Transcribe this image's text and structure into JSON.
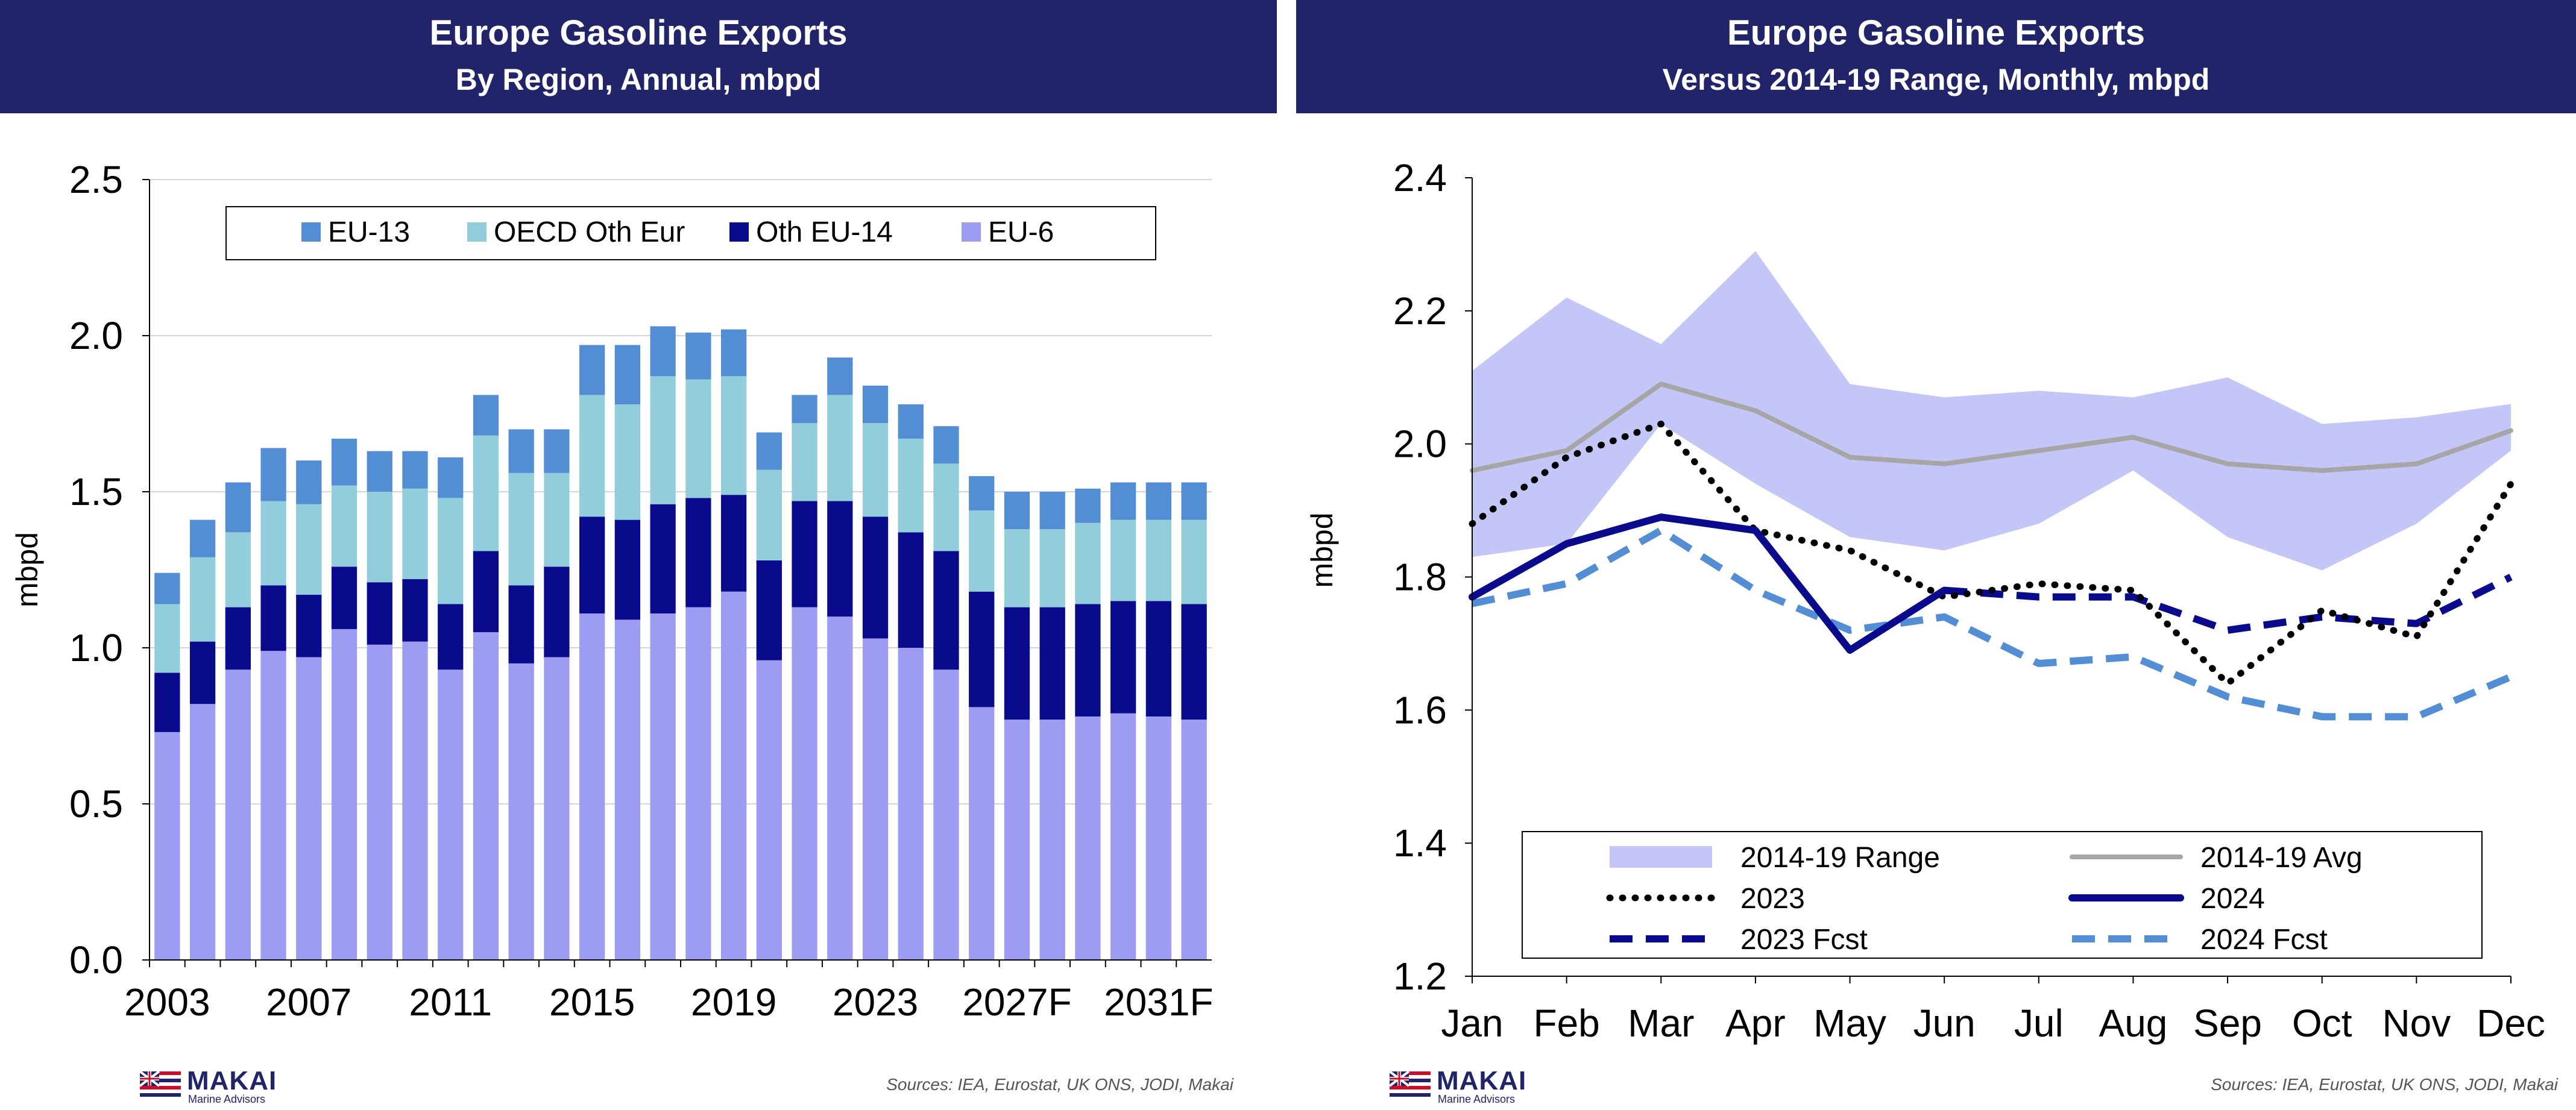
{
  "left_panel": {
    "title": "Europe Gasoline Exports",
    "subtitle": "By Region, Annual, mbpd",
    "source": "Sources: IEA, Eurostat, UK ONS, JODI, Makai",
    "logo_name": "MAKAI",
    "logo_sub": "Marine Advisors"
  },
  "right_panel": {
    "title": "Europe Gasoline Exports",
    "subtitle": "Versus 2014-19 Range, Monthly, mbpd",
    "source": "Sources: IEA, Eurostat, UK ONS, JODI, Makai",
    "logo_name": "MAKAI",
    "logo_sub": "Marine Advisors"
  },
  "chart_data": [
    {
      "type": "bar",
      "stacked": true,
      "title": "Europe Gasoline Exports",
      "subtitle": "By Region, Annual, mbpd",
      "ylabel": "mbpd",
      "ylim": [
        0,
        2.5
      ],
      "yticks": [
        "0.0",
        "0.5",
        "1.0",
        "1.5",
        "2.0",
        "2.5"
      ],
      "grid": "horizontal",
      "legend": "top",
      "forecast_shading_from": "2024",
      "categories": [
        "2003",
        "2004",
        "2005",
        "2006",
        "2007",
        "2008",
        "2009",
        "2010",
        "2011",
        "2012",
        "2013",
        "2014",
        "2015",
        "2016",
        "2017",
        "2018",
        "2019",
        "2020",
        "2021",
        "2022",
        "2023",
        "2024F",
        "2025F",
        "2026F",
        "2027F",
        "2028F",
        "2029F",
        "2030F",
        "2031F",
        "2032F"
      ],
      "xtick_labels": [
        "2003",
        "2007",
        "2011",
        "2015",
        "2019",
        "2023",
        "2027F",
        "2031F"
      ],
      "series": [
        {
          "name": "EU-6",
          "color": "#9b9cf2",
          "values": [
            0.73,
            0.82,
            0.93,
            0.99,
            0.97,
            1.06,
            1.01,
            1.02,
            0.93,
            1.05,
            0.95,
            0.97,
            1.11,
            1.09,
            1.11,
            1.13,
            1.18,
            0.96,
            1.13,
            1.1,
            1.03,
            1.0,
            0.93,
            0.81,
            0.77,
            0.77,
            0.78,
            0.79,
            0.78,
            0.77
          ]
        },
        {
          "name": "Oth EU-14",
          "color": "#0a0a8c",
          "values": [
            0.19,
            0.2,
            0.2,
            0.21,
            0.2,
            0.2,
            0.2,
            0.2,
            0.21,
            0.26,
            0.25,
            0.29,
            0.31,
            0.32,
            0.35,
            0.35,
            0.31,
            0.32,
            0.34,
            0.37,
            0.39,
            0.37,
            0.38,
            0.37,
            0.36,
            0.36,
            0.36,
            0.36,
            0.37,
            0.37
          ]
        },
        {
          "name": "OECD Oth Eur",
          "color": "#92cddc",
          "values": [
            0.22,
            0.27,
            0.24,
            0.27,
            0.29,
            0.26,
            0.29,
            0.29,
            0.34,
            0.37,
            0.36,
            0.3,
            0.39,
            0.37,
            0.41,
            0.38,
            0.38,
            0.29,
            0.25,
            0.34,
            0.3,
            0.3,
            0.28,
            0.26,
            0.25,
            0.25,
            0.26,
            0.26,
            0.26,
            0.27
          ]
        },
        {
          "name": "EU-13",
          "color": "#538ed5",
          "values": [
            0.1,
            0.12,
            0.16,
            0.17,
            0.14,
            0.15,
            0.13,
            0.12,
            0.13,
            0.13,
            0.14,
            0.14,
            0.16,
            0.19,
            0.16,
            0.15,
            0.15,
            0.12,
            0.09,
            0.12,
            0.12,
            0.11,
            0.12,
            0.11,
            0.12,
            0.12,
            0.11,
            0.12,
            0.12,
            0.12
          ]
        }
      ]
    },
    {
      "type": "line",
      "title": "Europe Gasoline Exports",
      "subtitle": "Versus 2014-19 Range, Monthly, mbpd",
      "ylabel": "mbpd",
      "ylim": [
        1.2,
        2.4
      ],
      "yticks": [
        "1.2",
        "1.4",
        "1.6",
        "1.8",
        "2.0",
        "2.2",
        "2.4"
      ],
      "grid": false,
      "legend": "bottom",
      "categories": [
        "Jan",
        "Feb",
        "Mar",
        "Apr",
        "May",
        "Jun",
        "Jul",
        "Aug",
        "Sep",
        "Oct",
        "Nov",
        "Dec"
      ],
      "range": {
        "name": "2014-19 Range",
        "color": "#c5c6f8",
        "low": [
          1.83,
          1.85,
          2.03,
          1.94,
          1.86,
          1.84,
          1.88,
          1.96,
          1.86,
          1.81,
          1.88,
          1.99
        ],
        "high": [
          2.11,
          2.22,
          2.15,
          2.29,
          2.09,
          2.07,
          2.08,
          2.07,
          2.1,
          2.03,
          2.04,
          2.06
        ]
      },
      "series": [
        {
          "name": "2014-19 Avg",
          "color": "#a6a6a6",
          "style": "solid",
          "values": [
            1.96,
            1.99,
            2.09,
            2.05,
            1.98,
            1.97,
            1.99,
            2.01,
            1.97,
            1.96,
            1.97,
            2.02
          ]
        },
        {
          "name": "2024",
          "color": "#0a0a8c",
          "style": "solid",
          "values": [
            1.77,
            1.85,
            1.89,
            1.87,
            1.69,
            1.78,
            null,
            null,
            null,
            null,
            null,
            null
          ]
        },
        {
          "name": "2023",
          "color": "#000000",
          "style": "dotted",
          "values": [
            1.88,
            1.98,
            2.03,
            1.87,
            1.84,
            1.77,
            1.79,
            1.78,
            1.64,
            1.75,
            1.71,
            1.94
          ]
        },
        {
          "name": "2023 Fcst",
          "color": "#0a0a8c",
          "style": "dashed",
          "values": [
            null,
            null,
            null,
            null,
            null,
            1.78,
            1.77,
            1.77,
            1.72,
            1.74,
            1.73,
            1.8
          ]
        },
        {
          "name": "2024 Fcst",
          "color": "#538ed5",
          "style": "dashed",
          "values": [
            1.76,
            1.79,
            1.87,
            1.78,
            1.72,
            1.74,
            1.67,
            1.68,
            1.62,
            1.59,
            1.59,
            1.65
          ]
        }
      ],
      "legend_order": [
        "2014-19 Range",
        "2014-19 Avg",
        "2023",
        "2024",
        "2023 Fcst",
        "2024 Fcst"
      ]
    }
  ]
}
